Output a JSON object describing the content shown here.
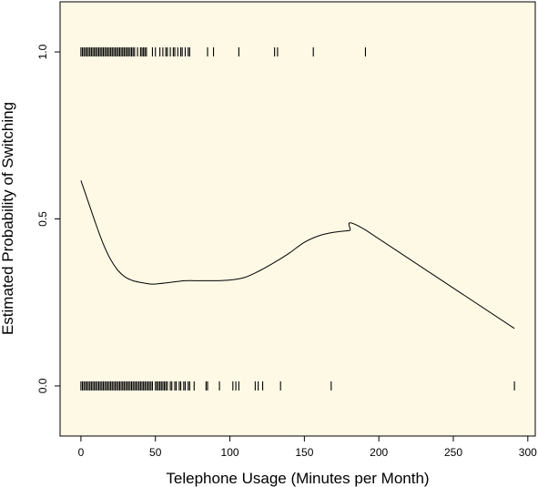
{
  "colors": {
    "plot_background": "#fdf9e5",
    "ink": "#000000"
  },
  "chart_data": {
    "type": "scatter",
    "title": "",
    "xlabel": "Telephone Usage (Minutes per Month)",
    "ylabel": "Estimated Probability of Switching",
    "xlim": [
      -14,
      305
    ],
    "ylim": [
      -0.15,
      1.15
    ],
    "x_ticks": [
      0,
      50,
      100,
      150,
      200,
      250,
      300
    ],
    "y_ticks": [
      0.0,
      0.5,
      1.0
    ],
    "y_tick_labels": [
      "0.0",
      "0.5",
      "1.0"
    ],
    "grid": false,
    "series": [
      {
        "type": "rug",
        "y": 1.0,
        "x": [
          0,
          1,
          2,
          3,
          4,
          5,
          6,
          7,
          8,
          9,
          10,
          11,
          12,
          13,
          14,
          15,
          16,
          17,
          18,
          19,
          20,
          21,
          22,
          23,
          24,
          25,
          26,
          27,
          28,
          29,
          30,
          31,
          32,
          33,
          34,
          35,
          36,
          38,
          40,
          41,
          42,
          43,
          44,
          48,
          50,
          53,
          55,
          57,
          58,
          60,
          62,
          63,
          65,
          67,
          68,
          70,
          72,
          73,
          85,
          89,
          106,
          130,
          132,
          156,
          191
        ]
      },
      {
        "type": "rug",
        "y": 0.0,
        "x": [
          0,
          1,
          2,
          3,
          4,
          5,
          6,
          7,
          8,
          9,
          10,
          11,
          12,
          13,
          14,
          15,
          16,
          17,
          18,
          19,
          20,
          21,
          22,
          23,
          24,
          25,
          26,
          27,
          28,
          29,
          30,
          31,
          32,
          33,
          34,
          35,
          36,
          37,
          38,
          39,
          40,
          41,
          42,
          43,
          44,
          45,
          46,
          47,
          48,
          50,
          51,
          52,
          53,
          54,
          55,
          56,
          57,
          58,
          60,
          61,
          63,
          64,
          66,
          67,
          69,
          70,
          72,
          73,
          76,
          84,
          85,
          93,
          102,
          104,
          106,
          117,
          119,
          122,
          134,
          168,
          291
        ]
      },
      {
        "type": "line",
        "x": [
          0,
          5,
          10,
          15,
          20,
          25,
          30,
          35,
          40,
          45,
          50,
          60,
          70,
          80,
          90,
          100,
          110,
          120,
          130,
          140,
          150,
          160,
          170,
          180,
          191,
          291
        ],
        "y": [
          0.615,
          0.55,
          0.485,
          0.425,
          0.378,
          0.345,
          0.325,
          0.315,
          0.31,
          0.306,
          0.305,
          0.31,
          0.315,
          0.315,
          0.315,
          0.317,
          0.325,
          0.345,
          0.37,
          0.398,
          0.43,
          0.45,
          0.46,
          0.465,
          0.467,
          0.172
        ]
      }
    ]
  }
}
